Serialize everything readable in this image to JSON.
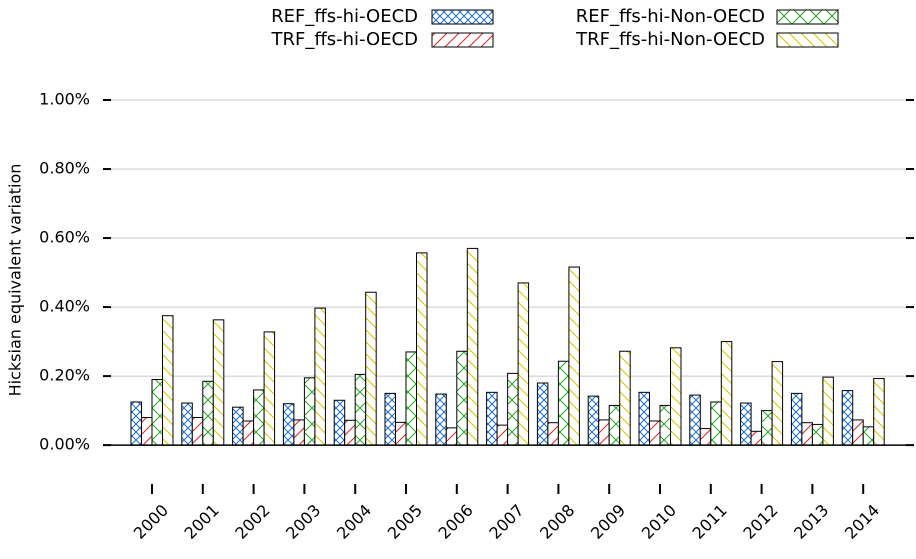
{
  "chart_data": {
    "type": "bar",
    "y_label": "Hicksian equivalent variation",
    "categories": [
      "2000",
      "2001",
      "2002",
      "2003",
      "2004",
      "2005",
      "2006",
      "2007",
      "2008",
      "2009",
      "2010",
      "2011",
      "2012",
      "2013",
      "2014"
    ],
    "series": [
      {
        "name": "REF_ffs-hi-OECD",
        "color": "#1f6fd0",
        "hatch": "crosshatch",
        "values": [
          0.125,
          0.122,
          0.11,
          0.12,
          0.13,
          0.15,
          0.148,
          0.153,
          0.18,
          0.142,
          0.153,
          0.145,
          0.122,
          0.15,
          0.158
        ]
      },
      {
        "name": "TRF_ffs-hi-OECD",
        "color": "#d62728",
        "hatch": "forward",
        "values": [
          0.08,
          0.08,
          0.07,
          0.073,
          0.072,
          0.066,
          0.05,
          0.058,
          0.065,
          0.073,
          0.07,
          0.048,
          0.04,
          0.065,
          0.073
        ]
      },
      {
        "name": "REF_ffs-hi-Non-OECD",
        "color": "#2ca02c",
        "hatch": "x",
        "values": [
          0.19,
          0.185,
          0.16,
          0.195,
          0.205,
          0.27,
          0.272,
          0.208,
          0.243,
          0.115,
          0.115,
          0.125,
          0.1,
          0.06,
          0.053
        ]
      },
      {
        "name": "TRF_ffs-hi-Non-OECD",
        "color": "#d4c600",
        "hatch": "back",
        "values": [
          0.375,
          0.363,
          0.328,
          0.397,
          0.443,
          0.557,
          0.57,
          0.47,
          0.516,
          0.272,
          0.282,
          0.3,
          0.242,
          0.197,
          0.193
        ]
      }
    ],
    "ylim": [
      -0.13,
      1.0
    ],
    "yticks": [
      {
        "value": 0,
        "label": "0.00%"
      },
      {
        "value": 0.2,
        "label": "0.20%"
      },
      {
        "value": 0.4,
        "label": "0.40%"
      },
      {
        "value": 0.6,
        "label": "0.60%"
      },
      {
        "value": 0.8,
        "label": "0.80%"
      },
      {
        "value": 1.0,
        "label": "1.00%"
      }
    ],
    "grid": true
  }
}
